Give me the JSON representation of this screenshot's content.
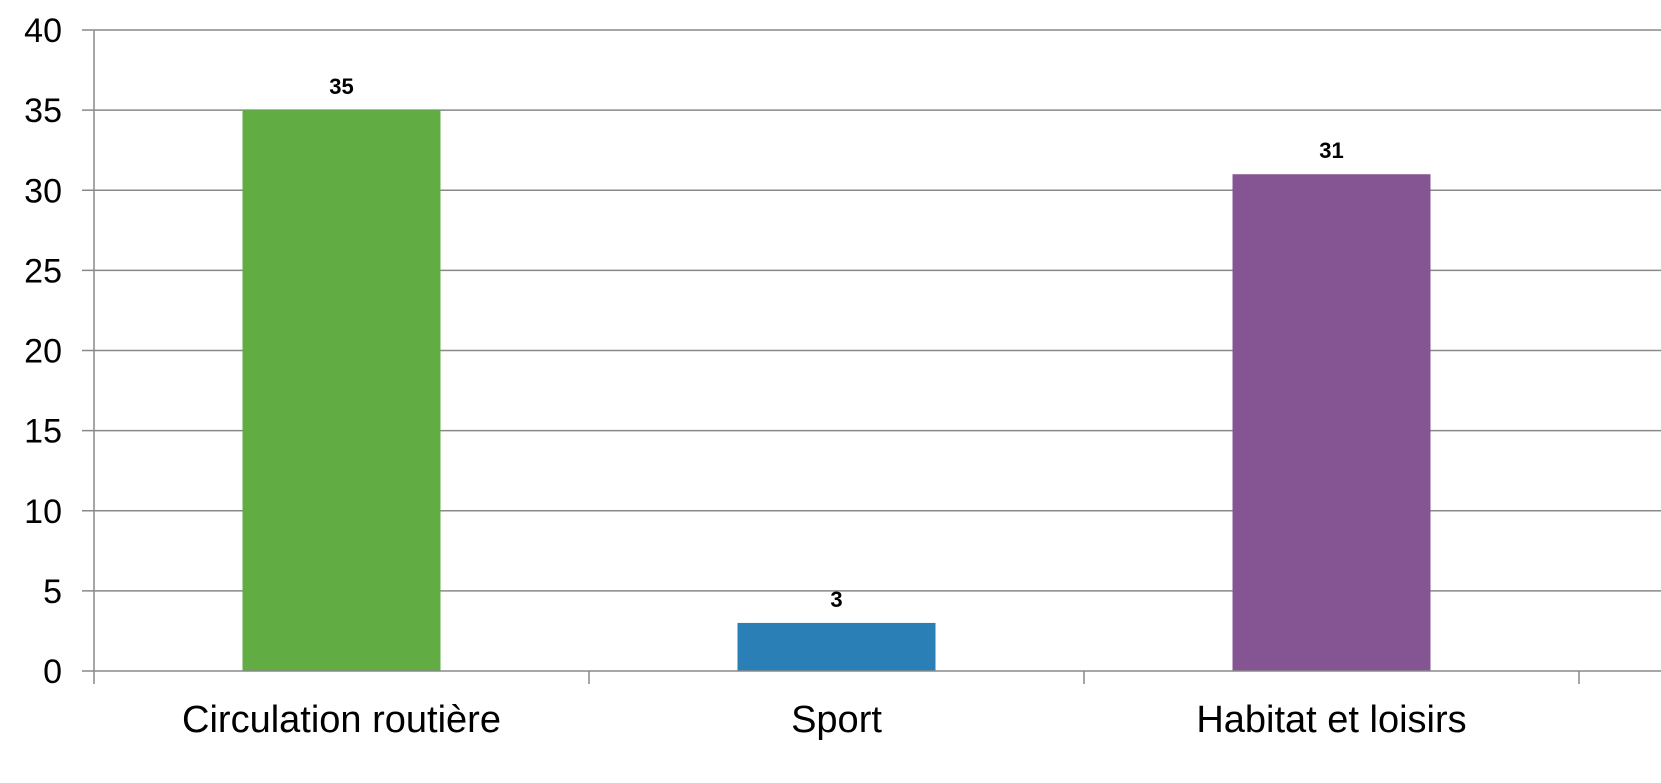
{
  "chart_data": {
    "type": "bar",
    "title": "",
    "xlabel": "",
    "ylabel": "",
    "categories": [
      "Circulation routière",
      "Sport",
      "Habitat et loisirs"
    ],
    "values": [
      35,
      3,
      31
    ],
    "colors": [
      "#62ad43",
      "#2a7fb6",
      "#855593"
    ],
    "data_labels": [
      "35",
      "3",
      "31"
    ],
    "ylim": [
      0,
      40
    ],
    "yticks": [
      0,
      5,
      10,
      15,
      20,
      25,
      30,
      35,
      40
    ],
    "ytick_labels": [
      "0",
      "5",
      "10",
      "15",
      "20",
      "25",
      "30",
      "35",
      "40"
    ],
    "grid": true,
    "legend": "none"
  }
}
